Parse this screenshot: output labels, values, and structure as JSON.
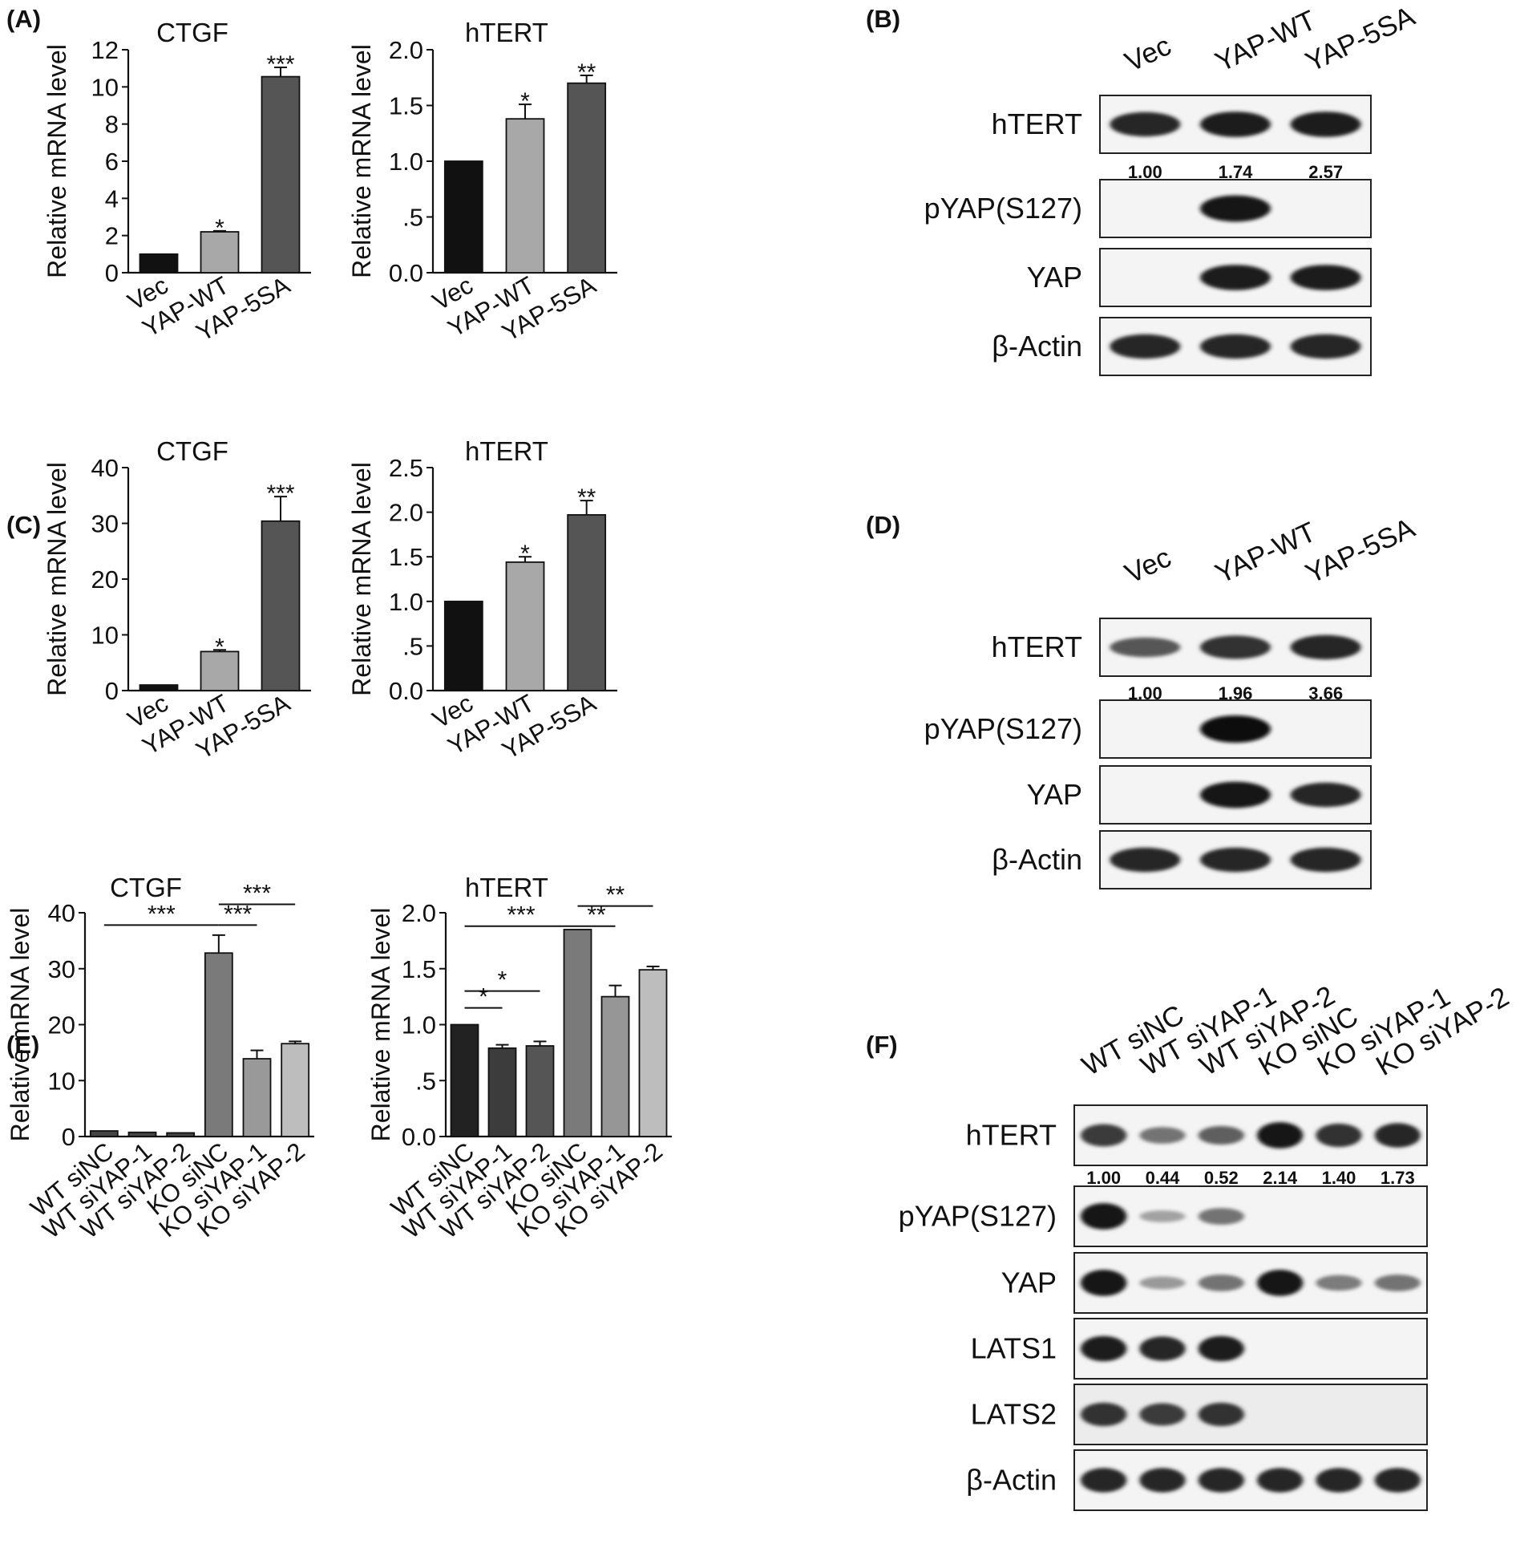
{
  "panels": [
    {
      "id": "A",
      "label": "(A)"
    },
    {
      "id": "B",
      "label": "(B)"
    },
    {
      "id": "C",
      "label": "(C)"
    },
    {
      "id": "D",
      "label": "(D)"
    },
    {
      "id": "E",
      "label": "(E)"
    },
    {
      "id": "F",
      "label": "(F)"
    }
  ],
  "chart_data": [
    {
      "panel": "A",
      "type": "bar",
      "title": "CTGF",
      "ylabel": "Relative mRNA level",
      "categories": [
        "Vec",
        "YAP-WT",
        "YAP-5SA"
      ],
      "values": [
        1.0,
        2.2,
        10.55
      ],
      "errors": [
        0,
        0.05,
        0.5
      ],
      "significance": [
        "",
        "*",
        "***"
      ],
      "ylim": [
        0,
        12
      ],
      "yticks": [
        "0",
        "2",
        "4",
        "6",
        "8",
        "10",
        "12"
      ],
      "colors": [
        "#111111",
        "#a8a8a8",
        "#555555"
      ]
    },
    {
      "panel": "A",
      "type": "bar",
      "title": "hTERT",
      "ylabel": "Relative mRNA level",
      "categories": [
        "Vec",
        "YAP-WT",
        "YAP-5SA"
      ],
      "values": [
        1.0,
        1.38,
        1.7
      ],
      "errors": [
        0,
        0.13,
        0.07
      ],
      "significance": [
        "",
        "*",
        "**"
      ],
      "ylim": [
        0,
        2.0
      ],
      "yticks": [
        "0.0",
        ".5",
        "1.0",
        "1.5",
        "2.0"
      ],
      "colors": [
        "#111111",
        "#a8a8a8",
        "#555555"
      ]
    },
    {
      "panel": "C",
      "type": "bar",
      "title": "CTGF",
      "ylabel": "Relative mRNA level",
      "categories": [
        "Vec",
        "YAP-WT",
        "YAP-5SA"
      ],
      "values": [
        1.0,
        7.0,
        30.4
      ],
      "errors": [
        0,
        0.3,
        4.4
      ],
      "significance": [
        "",
        "*",
        "***"
      ],
      "ylim": [
        0,
        40
      ],
      "yticks": [
        "0",
        "10",
        "20",
        "30",
        "40"
      ],
      "colors": [
        "#111111",
        "#a8a8a8",
        "#555555"
      ]
    },
    {
      "panel": "C",
      "type": "bar",
      "title": "hTERT",
      "ylabel": "Relative mRNA level",
      "categories": [
        "Vec",
        "YAP-WT",
        "YAP-5SA"
      ],
      "values": [
        1.0,
        1.44,
        1.97
      ],
      "errors": [
        0,
        0.06,
        0.16
      ],
      "significance": [
        "",
        "*",
        "**"
      ],
      "ylim": [
        0,
        2.5
      ],
      "yticks": [
        "0.0",
        ".5",
        "1.0",
        "1.5",
        "2.0",
        "2.5"
      ],
      "colors": [
        "#111111",
        "#a8a8a8",
        "#555555"
      ]
    },
    {
      "panel": "E",
      "type": "bar",
      "title": "CTGF",
      "ylabel": "Relative mRNA level",
      "categories": [
        "WT siNC",
        "WT siYAP-1",
        "WT siYAP-2",
        "KO siNC",
        "KO siYAP-1",
        "KO siYAP-2"
      ],
      "values": [
        1.0,
        0.75,
        0.65,
        32.8,
        13.9,
        16.6
      ],
      "errors": [
        0,
        0,
        0,
        3.2,
        1.5,
        0.4
      ],
      "brackets": [
        {
          "from": 0,
          "to": 3,
          "label": "***",
          "y": 37.8
        },
        {
          "from": 3,
          "to": 4,
          "label": "***",
          "y": 37.8
        },
        {
          "from": 3,
          "to": 5,
          "label": "***",
          "y": 41.5
        }
      ],
      "ylim": [
        0,
        40
      ],
      "yticks": [
        "0",
        "10",
        "20",
        "30",
        "40"
      ],
      "colors": [
        "#444444",
        "#444444",
        "#444444",
        "#7a7a7a",
        "#999999",
        "#bdbdbd"
      ]
    },
    {
      "panel": "E",
      "type": "bar",
      "title": "hTERT",
      "ylabel": "Relative mRNA level",
      "categories": [
        "WT siNC",
        "WT siYAP-1",
        "WT siYAP-2",
        "KO siNC",
        "KO siYAP-1",
        "KO siYAP-2"
      ],
      "values": [
        1.0,
        0.79,
        0.81,
        1.85,
        1.25,
        1.49
      ],
      "errors": [
        0,
        0.03,
        0.04,
        0,
        0.1,
        0.03
      ],
      "brackets": [
        {
          "from": 0,
          "to": 3,
          "label": "***",
          "y": 1.88
        },
        {
          "from": 3,
          "to": 4,
          "label": "**",
          "y": 1.88
        },
        {
          "from": 3,
          "to": 5,
          "label": "**",
          "y": 2.06
        },
        {
          "from": 0,
          "to": 1,
          "label": "*",
          "y": 1.15
        },
        {
          "from": 0,
          "to": 2,
          "label": "*",
          "y": 1.3
        }
      ],
      "ylim": [
        0,
        2.0
      ],
      "yticks": [
        "0.0",
        ".5",
        "1.0",
        "1.5",
        "2.0"
      ],
      "colors": [
        "#222222",
        "#3c3c3c",
        "#555555",
        "#7a7a7a",
        "#969696",
        "#bdbdbd"
      ]
    }
  ],
  "blots": [
    {
      "panel": "B",
      "lanes": [
        "Vec",
        "YAP-WT",
        "YAP-5SA"
      ],
      "rows": [
        {
          "label": "hTERT",
          "intensity": [
            0.85,
            0.9,
            0.9
          ],
          "quant": [
            "1.00",
            "1.74",
            "2.57"
          ]
        },
        {
          "label": "pYAP(S127)",
          "intensity": [
            0,
            0.95,
            0
          ]
        },
        {
          "label": "YAP",
          "intensity": [
            0,
            0.9,
            0.9
          ]
        },
        {
          "label": "β-Actin",
          "intensity": [
            0.85,
            0.85,
            0.85
          ]
        }
      ]
    },
    {
      "panel": "D",
      "lanes": [
        "Vec",
        "YAP-WT",
        "YAP-5SA"
      ],
      "rows": [
        {
          "label": "hTERT",
          "intensity": [
            0.6,
            0.8,
            0.85
          ],
          "quant": [
            "1.00",
            "1.96",
            "3.66"
          ]
        },
        {
          "label": "pYAP(S127)",
          "intensity": [
            0,
            1.0,
            0
          ]
        },
        {
          "label": "YAP",
          "intensity": [
            0,
            0.95,
            0.85
          ]
        },
        {
          "label": "β-Actin",
          "intensity": [
            0.85,
            0.85,
            0.85
          ]
        }
      ]
    },
    {
      "panel": "F",
      "lanes": [
        "WT siNC",
        "WT siYAP-1",
        "WT siYAP-2",
        "KO siNC",
        "KO siYAP-1",
        "KO siYAP-2"
      ],
      "rows": [
        {
          "label": "hTERT",
          "intensity": [
            0.75,
            0.45,
            0.55,
            0.95,
            0.8,
            0.85
          ],
          "quant": [
            "1.00",
            "0.44",
            "0.52",
            "2.14",
            "1.40",
            "1.73"
          ]
        },
        {
          "label": "pYAP(S127)",
          "intensity": [
            0.95,
            0.2,
            0.45,
            0,
            0,
            0
          ]
        },
        {
          "label": "YAP",
          "intensity": [
            0.95,
            0.25,
            0.45,
            0.95,
            0.4,
            0.45
          ]
        },
        {
          "label": "LATS1",
          "intensity": [
            0.9,
            0.85,
            0.9,
            0,
            0,
            0
          ]
        },
        {
          "label": "LATS2",
          "intensity": [
            0.8,
            0.75,
            0.8,
            0,
            0,
            0
          ]
        },
        {
          "label": "β-Actin",
          "intensity": [
            0.85,
            0.85,
            0.85,
            0.85,
            0.85,
            0.85
          ]
        }
      ]
    }
  ]
}
